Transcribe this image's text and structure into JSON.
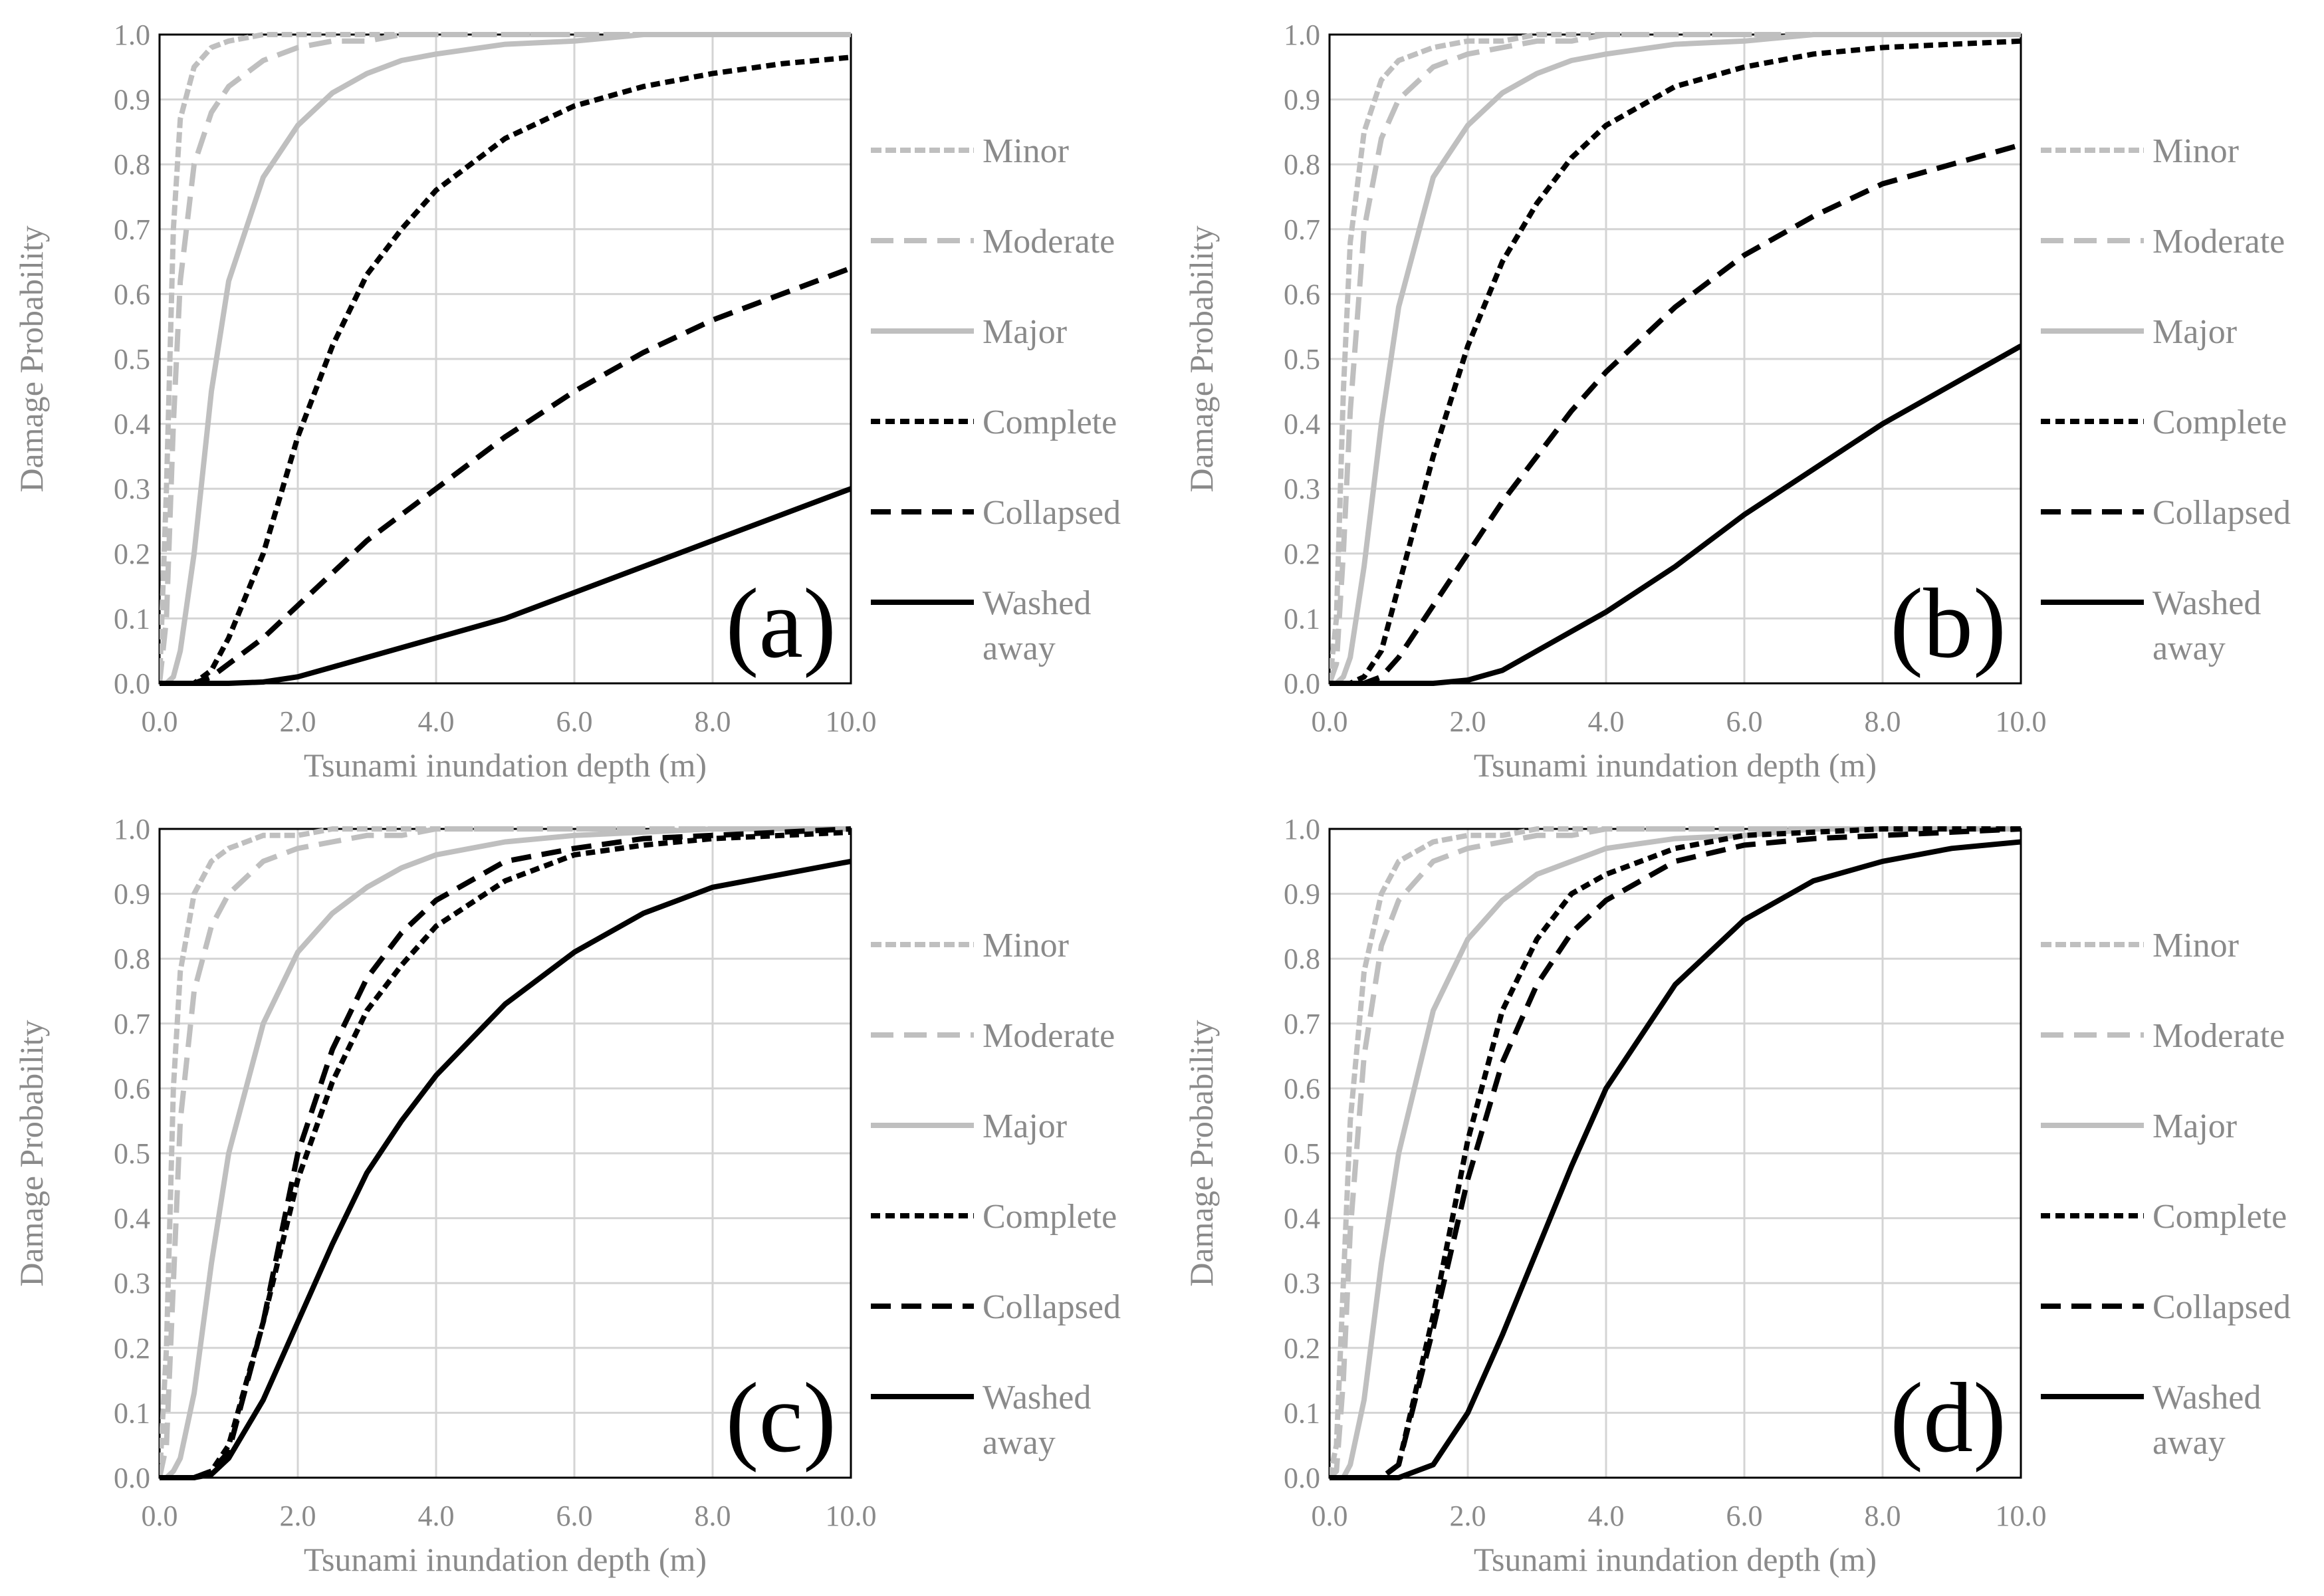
{
  "chart_data": [
    {
      "type": "line",
      "panel_label": "(a)",
      "xlabel": "Tsunami inundation depth (m)",
      "ylabel": "Damage Probability",
      "xlim": [
        0,
        10
      ],
      "ylim": [
        0,
        1
      ],
      "x_ticks": [
        "0.0",
        "2.0",
        "4.0",
        "6.0",
        "8.0",
        "10.0"
      ],
      "y_ticks": [
        "0.0",
        "0.1",
        "0.2",
        "0.3",
        "0.4",
        "0.5",
        "0.6",
        "0.7",
        "0.8",
        "0.9",
        "1.0"
      ],
      "grid": true,
      "legend_position": "right",
      "x": [
        0,
        0.1,
        0.2,
        0.3,
        0.5,
        0.75,
        1,
        1.5,
        2,
        2.5,
        3,
        3.5,
        4,
        5,
        6,
        7,
        8,
        9,
        10
      ],
      "series": [
        {
          "name": "Minor",
          "style": "minor",
          "values": [
            0,
            0.3,
            0.7,
            0.87,
            0.95,
            0.98,
            0.99,
            1,
            1,
            1,
            1,
            1,
            1,
            1,
            1,
            1,
            1,
            1,
            1
          ]
        },
        {
          "name": "Moderate",
          "style": "moderate",
          "values": [
            0,
            0.1,
            0.4,
            0.62,
            0.8,
            0.88,
            0.92,
            0.96,
            0.98,
            0.99,
            0.99,
            1,
            1,
            1,
            1,
            1,
            1,
            1,
            1
          ]
        },
        {
          "name": "Major",
          "style": "major",
          "values": [
            0,
            0,
            0.01,
            0.05,
            0.2,
            0.45,
            0.62,
            0.78,
            0.86,
            0.91,
            0.94,
            0.96,
            0.97,
            0.985,
            0.99,
            1,
            1,
            1,
            1
          ]
        },
        {
          "name": "Complete",
          "style": "complete",
          "values": [
            0,
            0,
            0,
            0,
            0,
            0.02,
            0.07,
            0.2,
            0.38,
            0.52,
            0.63,
            0.7,
            0.76,
            0.84,
            0.89,
            0.92,
            0.94,
            0.955,
            0.965
          ]
        },
        {
          "name": "Collapsed",
          "style": "collapsed",
          "values": [
            0,
            0,
            0,
            0,
            0,
            0.01,
            0.03,
            0.07,
            0.12,
            0.17,
            0.22,
            0.26,
            0.3,
            0.38,
            0.45,
            0.51,
            0.56,
            0.6,
            0.64
          ]
        },
        {
          "name": "Washed away",
          "style": "washed",
          "values": [
            0,
            0,
            0,
            0,
            0,
            0,
            0,
            0.002,
            0.01,
            0.025,
            0.04,
            0.055,
            0.07,
            0.1,
            0.14,
            0.18,
            0.22,
            0.26,
            0.3
          ]
        }
      ]
    },
    {
      "type": "line",
      "panel_label": "(b)",
      "xlabel": "Tsunami inundation depth (m)",
      "ylabel": "Damage Probability",
      "xlim": [
        0,
        10
      ],
      "ylim": [
        0,
        1
      ],
      "x_ticks": [
        "0.0",
        "2.0",
        "4.0",
        "6.0",
        "8.0",
        "10.0"
      ],
      "y_ticks": [
        "0.0",
        "0.1",
        "0.2",
        "0.3",
        "0.4",
        "0.5",
        "0.6",
        "0.7",
        "0.8",
        "0.9",
        "1.0"
      ],
      "grid": true,
      "legend_position": "right",
      "x": [
        0,
        0.1,
        0.2,
        0.3,
        0.5,
        0.75,
        1,
        1.5,
        2,
        2.5,
        3,
        3.5,
        4,
        5,
        6,
        7,
        8,
        9,
        10
      ],
      "series": [
        {
          "name": "Minor",
          "style": "minor",
          "values": [
            0,
            0.1,
            0.45,
            0.68,
            0.85,
            0.93,
            0.96,
            0.98,
            0.99,
            0.99,
            1,
            1,
            1,
            1,
            1,
            1,
            1,
            1,
            1
          ]
        },
        {
          "name": "Moderate",
          "style": "moderate",
          "values": [
            0,
            0.03,
            0.2,
            0.42,
            0.7,
            0.84,
            0.9,
            0.95,
            0.97,
            0.98,
            0.99,
            0.99,
            1,
            1,
            1,
            1,
            1,
            1,
            1
          ]
        },
        {
          "name": "Major",
          "style": "major",
          "values": [
            0,
            0,
            0.01,
            0.04,
            0.18,
            0.4,
            0.58,
            0.78,
            0.86,
            0.91,
            0.94,
            0.96,
            0.97,
            0.985,
            0.99,
            1,
            1,
            1,
            1
          ]
        },
        {
          "name": "Complete",
          "style": "complete",
          "values": [
            0,
            0,
            0,
            0,
            0.01,
            0.05,
            0.15,
            0.35,
            0.52,
            0.65,
            0.74,
            0.81,
            0.86,
            0.92,
            0.95,
            0.97,
            0.98,
            0.985,
            0.99
          ]
        },
        {
          "name": "Collapsed",
          "style": "collapsed",
          "values": [
            0,
            0,
            0,
            0,
            0,
            0.01,
            0.04,
            0.12,
            0.2,
            0.28,
            0.35,
            0.42,
            0.48,
            0.58,
            0.66,
            0.72,
            0.77,
            0.8,
            0.83
          ]
        },
        {
          "name": "Washed away",
          "style": "washed",
          "values": [
            0,
            0,
            0,
            0,
            0,
            0,
            0,
            0,
            0.005,
            0.02,
            0.05,
            0.08,
            0.11,
            0.18,
            0.26,
            0.33,
            0.4,
            0.46,
            0.52
          ]
        }
      ]
    },
    {
      "type": "line",
      "panel_label": "(c)",
      "xlabel": "Tsunami inundation depth (m)",
      "ylabel": "Damage Probability",
      "xlim": [
        0,
        10
      ],
      "ylim": [
        0,
        1
      ],
      "x_ticks": [
        "0.0",
        "2.0",
        "4.0",
        "6.0",
        "8.0",
        "10.0"
      ],
      "y_ticks": [
        "0.0",
        "0.1",
        "0.2",
        "0.3",
        "0.4",
        "0.5",
        "0.6",
        "0.7",
        "0.8",
        "0.9",
        "1.0"
      ],
      "grid": true,
      "legend_position": "right",
      "x": [
        0,
        0.1,
        0.2,
        0.3,
        0.5,
        0.75,
        1,
        1.5,
        2,
        2.5,
        3,
        3.5,
        4,
        5,
        6,
        7,
        8,
        9,
        10
      ],
      "series": [
        {
          "name": "Minor",
          "style": "minor",
          "values": [
            0,
            0.2,
            0.6,
            0.78,
            0.9,
            0.95,
            0.97,
            0.99,
            0.99,
            1,
            1,
            1,
            1,
            1,
            1,
            1,
            1,
            1,
            1
          ]
        },
        {
          "name": "Moderate",
          "style": "moderate",
          "values": [
            0,
            0.05,
            0.3,
            0.55,
            0.75,
            0.85,
            0.9,
            0.95,
            0.97,
            0.98,
            0.99,
            0.99,
            1,
            1,
            1,
            1,
            1,
            1,
            1
          ]
        },
        {
          "name": "Major",
          "style": "major",
          "values": [
            0,
            0,
            0.01,
            0.03,
            0.13,
            0.33,
            0.5,
            0.7,
            0.81,
            0.87,
            0.91,
            0.94,
            0.96,
            0.98,
            0.99,
            0.995,
            1,
            1,
            1
          ]
        },
        {
          "name": "Complete",
          "style": "complete",
          "values": [
            0,
            0,
            0,
            0,
            0,
            0.01,
            0.05,
            0.24,
            0.46,
            0.61,
            0.72,
            0.79,
            0.85,
            0.92,
            0.96,
            0.975,
            0.985,
            0.99,
            0.995
          ]
        },
        {
          "name": "Collapsed",
          "style": "collapsed",
          "values": [
            0,
            0,
            0,
            0,
            0,
            0.01,
            0.04,
            0.24,
            0.5,
            0.66,
            0.77,
            0.84,
            0.89,
            0.95,
            0.97,
            0.985,
            0.99,
            0.995,
            1
          ]
        },
        {
          "name": "Washed away",
          "style": "washed",
          "values": [
            0,
            0,
            0,
            0,
            0,
            0.005,
            0.03,
            0.12,
            0.24,
            0.36,
            0.47,
            0.55,
            0.62,
            0.73,
            0.81,
            0.87,
            0.91,
            0.93,
            0.95
          ]
        }
      ]
    },
    {
      "type": "line",
      "panel_label": "(d)",
      "xlabel": "Tsunami inundation depth (m)",
      "ylabel": "Damage Probability",
      "xlim": [
        0,
        10
      ],
      "ylim": [
        0,
        1
      ],
      "x_ticks": [
        "0.0",
        "2.0",
        "4.0",
        "6.0",
        "8.0",
        "10.0"
      ],
      "y_ticks": [
        "0.0",
        "0.1",
        "0.2",
        "0.3",
        "0.4",
        "0.5",
        "0.6",
        "0.7",
        "0.8",
        "0.9",
        "1.0"
      ],
      "grid": true,
      "legend_position": "right",
      "x": [
        0,
        0.1,
        0.2,
        0.3,
        0.5,
        0.75,
        1,
        1.5,
        2,
        2.5,
        3,
        3.5,
        4,
        5,
        6,
        7,
        8,
        9,
        10
      ],
      "series": [
        {
          "name": "Minor",
          "style": "minor",
          "values": [
            0,
            0.05,
            0.3,
            0.55,
            0.78,
            0.9,
            0.95,
            0.98,
            0.99,
            0.99,
            1,
            1,
            1,
            1,
            1,
            1,
            1,
            1,
            1
          ]
        },
        {
          "name": "Moderate",
          "style": "moderate",
          "values": [
            0,
            0.01,
            0.15,
            0.38,
            0.65,
            0.82,
            0.89,
            0.95,
            0.97,
            0.98,
            0.99,
            0.99,
            1,
            1,
            1,
            1,
            1,
            1,
            1
          ]
        },
        {
          "name": "Major",
          "style": "major",
          "values": [
            0,
            0,
            0,
            0.02,
            0.12,
            0.33,
            0.5,
            0.72,
            0.83,
            0.89,
            0.93,
            0.95,
            0.97,
            0.985,
            0.99,
            1,
            1,
            1,
            1
          ]
        },
        {
          "name": "Complete",
          "style": "complete",
          "values": [
            0,
            0,
            0,
            0,
            0,
            0,
            0.02,
            0.25,
            0.52,
            0.72,
            0.83,
            0.9,
            0.93,
            0.97,
            0.99,
            0.995,
            1,
            1,
            1
          ]
        },
        {
          "name": "Collapsed",
          "style": "collapsed",
          "values": [
            0,
            0,
            0,
            0,
            0,
            0,
            0.02,
            0.23,
            0.46,
            0.64,
            0.76,
            0.84,
            0.89,
            0.95,
            0.975,
            0.985,
            0.99,
            0.995,
            1
          ]
        },
        {
          "name": "Washed away",
          "style": "washed",
          "values": [
            0,
            0,
            0,
            0,
            0,
            0,
            0,
            0.02,
            0.1,
            0.22,
            0.35,
            0.48,
            0.6,
            0.76,
            0.86,
            0.92,
            0.95,
            0.97,
            0.98
          ]
        }
      ]
    }
  ],
  "styles": {
    "minor": {
      "color": "#bfbfbf",
      "dash": "16 6"
    },
    "moderate": {
      "color": "#bfbfbf",
      "dash": "34 16"
    },
    "major": {
      "color": "#bfbfbf",
      "dash": ""
    },
    "complete": {
      "color": "#000000",
      "dash": "14 8"
    },
    "collapsed": {
      "color": "#000000",
      "dash": "30 16"
    },
    "washed": {
      "color": "#000000",
      "dash": ""
    }
  }
}
